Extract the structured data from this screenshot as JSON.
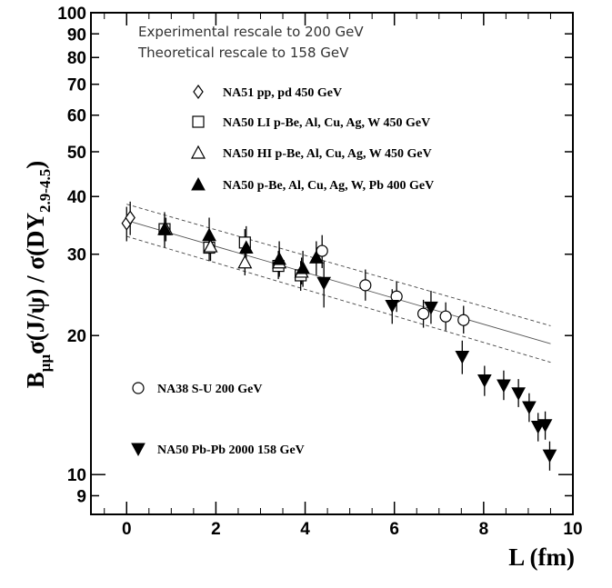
{
  "chart_data": {
    "type": "scatter",
    "y_scale": "log",
    "xlabel": "L (fm)",
    "ylabel_parts": {
      "b": "B",
      "b_sub": "μμ",
      "mid": "σ(J/ψ) / σ(DY",
      "dy_sub": "2.9-4.5",
      "end": ")"
    },
    "xlim": [
      -0.8,
      10
    ],
    "ylim": [
      8.2,
      100
    ],
    "x_ticks": [
      0,
      2,
      4,
      6,
      8,
      10
    ],
    "x_tick_labels": [
      "0",
      "2",
      "4",
      "6",
      "8",
      "10"
    ],
    "y_ticks": [
      9,
      10,
      20,
      30,
      40,
      50,
      60,
      70,
      80,
      90,
      100
    ],
    "y_tick_labels": [
      "9",
      "10",
      "20",
      "30",
      "40",
      "50",
      "60",
      "70",
      "80",
      "90",
      "100"
    ],
    "annotations": [
      "Experimental rescale to 200 GeV",
      "Theoretical rescale to 158 GeV"
    ],
    "fit_curve": {
      "x": [
        0,
        9.5
      ],
      "y": [
        35.5,
        19.2
      ]
    },
    "fit_band_upper": {
      "x": [
        0,
        9.5
      ],
      "y": [
        38.5,
        21.0
      ]
    },
    "fit_band_lower": {
      "x": [
        0,
        9.5
      ],
      "y": [
        32.8,
        17.5
      ]
    },
    "series": [
      {
        "name": "NA51 pp, pd 450 GeV",
        "marker": "diamond-open",
        "points": [
          {
            "x": 0.0,
            "y": 35.0,
            "lo": 32.0,
            "hi": 38.0
          },
          {
            "x": 0.08,
            "y": 36.0,
            "lo": 33.0,
            "hi": 39.0
          }
        ]
      },
      {
        "name": "NA50 LI p-Be, Al, Cu, Ag, W 450 GeV",
        "marker": "square-open",
        "points": [
          {
            "x": 0.85,
            "y": 34.0,
            "lo": 32.0,
            "hi": 36.0
          },
          {
            "x": 1.85,
            "y": 31.0,
            "lo": 29.0,
            "hi": 33.0
          },
          {
            "x": 2.65,
            "y": 31.8,
            "lo": 29.5,
            "hi": 34.0
          },
          {
            "x": 3.4,
            "y": 28.3,
            "lo": 26.5,
            "hi": 30.5
          },
          {
            "x": 3.9,
            "y": 27.0,
            "lo": 25.0,
            "hi": 29.0
          }
        ]
      },
      {
        "name": "NA50 HI p-Be, Al, Cu, Ag, W 450 GeV",
        "marker": "triangle-up-open",
        "points": [
          {
            "x": 0.88,
            "y": 34.0,
            "lo": 32.0,
            "hi": 36.0
          },
          {
            "x": 1.88,
            "y": 31.2,
            "lo": 29.0,
            "hi": 33.5
          },
          {
            "x": 2.65,
            "y": 28.8,
            "lo": 27.0,
            "hi": 31.0
          },
          {
            "x": 3.42,
            "y": 28.8,
            "lo": 27.0,
            "hi": 31.0
          },
          {
            "x": 3.92,
            "y": 27.5,
            "lo": 25.8,
            "hi": 29.5
          }
        ]
      },
      {
        "name": "NA50 p-Be, Al, Cu, Ag, W, Pb 400 GeV",
        "marker": "triangle-up-filled",
        "points": [
          {
            "x": 0.85,
            "y": 34.0,
            "lo": 31.0,
            "hi": 37.0
          },
          {
            "x": 1.85,
            "y": 33.0,
            "lo": 30.0,
            "hi": 36.0
          },
          {
            "x": 2.68,
            "y": 31.0,
            "lo": 28.0,
            "hi": 34.5
          },
          {
            "x": 3.42,
            "y": 29.3,
            "lo": 26.8,
            "hi": 32.0
          },
          {
            "x": 3.95,
            "y": 28.0,
            "lo": 25.5,
            "hi": 30.5
          },
          {
            "x": 4.25,
            "y": 29.5,
            "lo": 27.0,
            "hi": 32.0
          }
        ]
      },
      {
        "name": "NA38 S-U 200 GeV",
        "marker": "circle-open",
        "points": [
          {
            "x": 4.38,
            "y": 30.5,
            "lo": 28.0,
            "hi": 33.0
          },
          {
            "x": 5.35,
            "y": 25.7,
            "lo": 23.8,
            "hi": 27.8
          },
          {
            "x": 6.05,
            "y": 24.3,
            "lo": 22.5,
            "hi": 26.2
          },
          {
            "x": 6.65,
            "y": 22.3,
            "lo": 20.8,
            "hi": 23.9
          },
          {
            "x": 7.15,
            "y": 22.0,
            "lo": 20.5,
            "hi": 23.6
          },
          {
            "x": 7.55,
            "y": 21.6,
            "lo": 20.2,
            "hi": 23.2
          }
        ]
      },
      {
        "name": "NA50 Pb-Pb 2000 158 GeV",
        "marker": "triangle-down-filled",
        "points": [
          {
            "x": 4.42,
            "y": 26.0,
            "lo": 23.0,
            "hi": 29.0
          },
          {
            "x": 5.95,
            "y": 23.2,
            "lo": 21.2,
            "hi": 25.2
          },
          {
            "x": 6.82,
            "y": 23.0,
            "lo": 21.2,
            "hi": 25.0
          },
          {
            "x": 7.52,
            "y": 18.0,
            "lo": 16.5,
            "hi": 19.5
          },
          {
            "x": 8.02,
            "y": 16.0,
            "lo": 14.8,
            "hi": 17.2
          },
          {
            "x": 8.45,
            "y": 15.6,
            "lo": 14.5,
            "hi": 16.8
          },
          {
            "x": 8.78,
            "y": 15.0,
            "lo": 14.0,
            "hi": 16.1
          },
          {
            "x": 9.02,
            "y": 14.0,
            "lo": 13.0,
            "hi": 15.0
          },
          {
            "x": 9.22,
            "y": 12.7,
            "lo": 11.8,
            "hi": 13.6
          },
          {
            "x": 9.38,
            "y": 12.8,
            "lo": 11.9,
            "hi": 13.7
          },
          {
            "x": 9.48,
            "y": 11.0,
            "lo": 10.2,
            "hi": 11.8
          }
        ]
      }
    ],
    "legend_upper_order": [
      0,
      1,
      2,
      3
    ],
    "legend_lower_order": [
      4,
      5
    ]
  }
}
